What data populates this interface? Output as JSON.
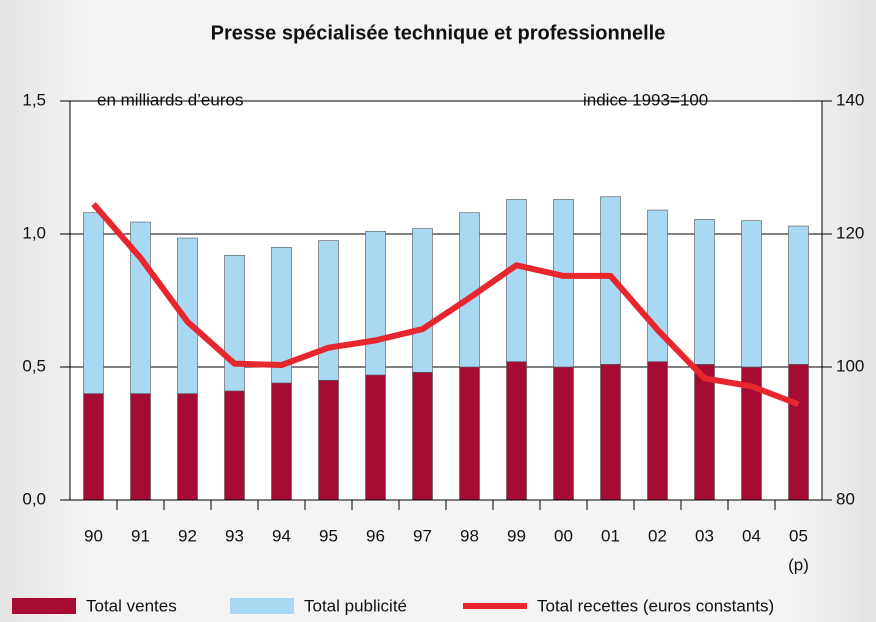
{
  "chart_data": {
    "type": "bar-line",
    "title": "Presse spécialisée technique et professionnelle",
    "y_label": "en milliards d’euros",
    "y2_label": "indice 1993=100",
    "categories": [
      "90",
      "91",
      "92",
      "93",
      "94",
      "95",
      "96",
      "97",
      "98",
      "99",
      "00",
      "01",
      "02",
      "03",
      "04",
      "05"
    ],
    "category_note": "(p)",
    "series": [
      {
        "name": "Total ventes",
        "color": "#a50b33",
        "type": "bar",
        "stacked": true,
        "values": [
          0.4,
          0.4,
          0.4,
          0.41,
          0.44,
          0.45,
          0.47,
          0.48,
          0.5,
          0.52,
          0.5,
          0.51,
          0.52,
          0.51,
          0.5,
          0.51
        ]
      },
      {
        "name": "Total publicité",
        "color": "#a8d8f2",
        "type": "bar",
        "stacked": true,
        "values": [
          0.68,
          0.645,
          0.585,
          0.51,
          0.51,
          0.525,
          0.54,
          0.54,
          0.58,
          0.61,
          0.63,
          0.63,
          0.57,
          0.545,
          0.55,
          0.52
        ]
      },
      {
        "name": "Total recettes (euros constants)",
        "color": "#e8262d",
        "type": "line",
        "axis": "y2",
        "values": [
          124.5,
          116.4,
          106.8,
          100.5,
          100.3,
          102.9,
          104,
          105.7,
          110.4,
          115.3,
          113.7,
          113.7,
          105.6,
          98.3,
          97.1,
          94.4
        ]
      }
    ],
    "ylim": [
      0,
      1.5
    ],
    "yticks": [
      {
        "value": 0,
        "label": "0,0"
      },
      {
        "value": 0.5,
        "label": "0,5"
      },
      {
        "value": 1,
        "label": "1,0"
      },
      {
        "value": 1.5,
        "label": "1,5"
      }
    ],
    "y2lim": [
      80,
      140
    ],
    "y2ticks": [
      80,
      100,
      120,
      140
    ],
    "grid": true,
    "legend": "bottom"
  }
}
